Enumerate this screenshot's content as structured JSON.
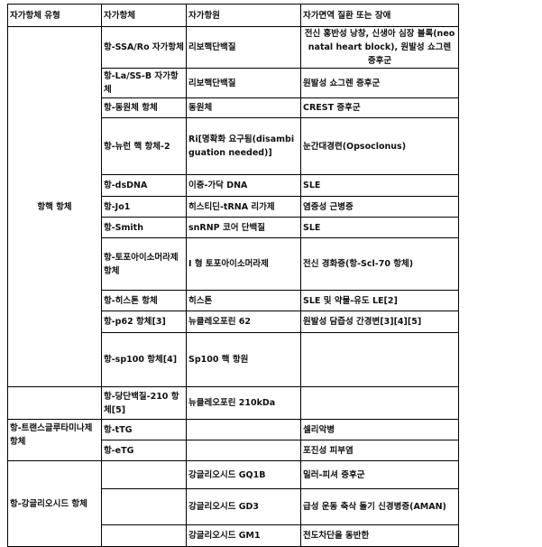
{
  "header": [
    "자가항체 유형",
    "자가항체",
    "자가항원",
    "자가면역 질환 또는 장애"
  ],
  "groups": [
    {
      "type": "항핵 항체",
      "rows": [
        {
          "antibody": "항-SSA/Ro 자가항체",
          "antigen": "리보핵단백질",
          "disease": "전신 홍반성 낭창, 신생아 심장 블록(neonatal heart block), 원발성 쇼그렌 증후군"
        },
        {
          "antibody": "항-La/SS-B 자가항체",
          "antigen": "리보핵단백질",
          "disease": "원발성 쇼그렌 증후군"
        },
        {
          "antibody": "항-동원체 항체",
          "antigen": "동원체",
          "disease": "CREST 증후군"
        },
        {
          "antibody": "항-뉴런 핵 항체-2",
          "antigen": "Ri[명확화 요구됨(disambiguation needed)]",
          "disease": "눈간대경련(Opsoclonus)"
        },
        {
          "antibody": "항-dsDNA",
          "antigen": "이중-가닥 DNA",
          "disease": "SLE"
        },
        {
          "antibody": "항-Jo1",
          "antigen": "히스티딘-tRNA 리가제",
          "disease": "염증성 근병증"
        },
        {
          "antibody": "항-Smith",
          "antigen": "snRNP 코어 단백질",
          "disease": "SLE"
        },
        {
          "antibody": "항-토포아이소머라제 항체",
          "antigen": "I 형 토포아이소머라제",
          "disease": "전신 경화증(항-Scl-70 항체)"
        },
        {
          "antibody": "항-히스톤 항체",
          "antigen": "히스톤",
          "disease": "SLE 및 약물-유도 LE[2]"
        },
        {
          "antibody": "항-p62 항체[3]",
          "antigen": "뉴클레오포린 62",
          "disease": "원발성 담즙성 간경변[3][4][5]"
        },
        {
          "antibody": "항-sp100 항체[4]",
          "antigen": "Sp100 핵 항원",
          "disease": ""
        }
      ]
    },
    {
      "type": "",
      "rows": [
        {
          "antibody": "항-당단백질-210 항체[5]",
          "antigen": "뉴클레오포린 210kDa",
          "disease": ""
        }
      ]
    },
    {
      "type": "항-트랜스글루타미나제 항체",
      "rows": [
        {
          "antibody": "항-tTG",
          "antigen": "",
          "disease": "셀리악병"
        },
        {
          "antibody": "항-eTG",
          "antigen": "",
          "disease": "포진성 피부염"
        }
      ]
    },
    {
      "type": "항-강글리오시드 항체",
      "rows": [
        {
          "antibody": "",
          "antigen": "강글리오시드 GQ1B",
          "disease": "밀러-피셔 증후군"
        },
        {
          "antibody": "",
          "antigen": "강글리오시드 GD3",
          "disease": "급성 운동 축삭 돌기 신경병증(AMAN)"
        },
        {
          "antibody": "",
          "antigen": "강글리오시드 GM1",
          "disease": "전도차단을 동반한"
        }
      ]
    }
  ]
}
